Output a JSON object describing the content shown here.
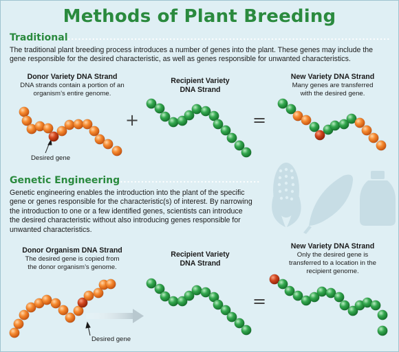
{
  "title": "Methods of Plant Breeding",
  "traditional": {
    "heading": "Traditional",
    "paragraph_lines": [
      "The traditional plant breeding process introduces a number of genes into the plant. These genes may include the",
      "gene responsible for the desired characteristic, as well as genes responsible for unwanted characteristics."
    ],
    "donor": {
      "title": "Donor Variety DNA Strand",
      "desc_lines": [
        "DNA strands contain a portion of an",
        "organism’s entire genome."
      ]
    },
    "recipient": {
      "title_lines": [
        "Recipient Variety",
        "DNA Strand"
      ]
    },
    "result": {
      "title": "New Variety DNA Strand",
      "desc_lines": [
        "Many genes are transferred",
        "with the desired gene."
      ]
    },
    "plus_symbol": "+",
    "equals_symbol": "=",
    "desired_gene_label": "Desired gene"
  },
  "genetic_engineering": {
    "heading": "Genetic Engineering",
    "paragraph_lines": [
      "Genetic engineering enables the introduction into the plant of the specific",
      "gene or genes responsible for the characteristic(s) of interest. By narrowing",
      "the introduction to one or a few identified genes, scientists can introduce",
      "the desired characteristic without also introducing genes responsible for",
      "unwanted characteristics."
    ],
    "donor": {
      "title": "Donor Organism DNA Strand",
      "desc_lines": [
        "The desired gene is copied from",
        "the donor organism’s genome."
      ]
    },
    "recipient": {
      "title_lines": [
        "Recipient Variety",
        "DNA Strand"
      ]
    },
    "result": {
      "title": "New Variety DNA Strand",
      "desc_lines": [
        "Only the desired gene is",
        "transferred to a location in the",
        "recipient genome."
      ]
    },
    "equals_symbol": "=",
    "desired_gene_label": "Desired gene"
  },
  "colors": {
    "background": "#dfeff4",
    "heading_green": "#2a8a3e",
    "orange_bead": "#f07a2a",
    "green_bead": "#2e9e48",
    "desired_gene_red": "#c8401c",
    "silhouette": "#c7dde5"
  },
  "icons": [
    "corn-icon",
    "soybean-pod-icon",
    "bottle-icon"
  ]
}
